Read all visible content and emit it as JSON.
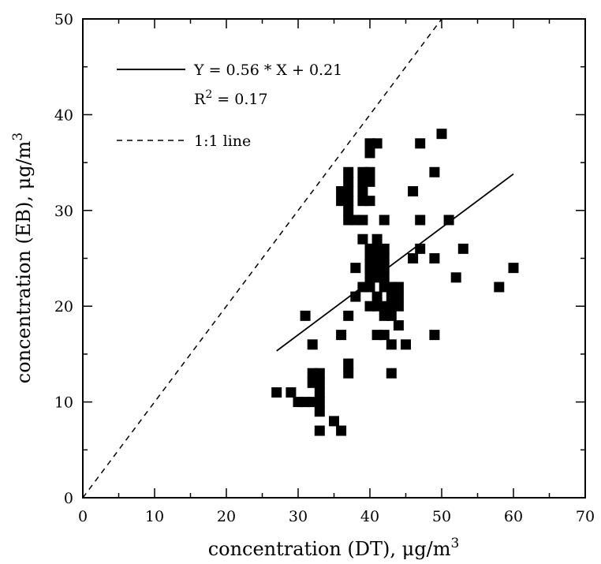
{
  "chart_data": {
    "type": "scatter",
    "xlabel": "concentration (DT), μg/m",
    "xlabel_sup": "3",
    "ylabel": "concentration (EB), μg/m",
    "ylabel_sup": "3",
    "xlim": [
      0,
      70
    ],
    "ylim": [
      0,
      50
    ],
    "x_ticks": [
      0,
      10,
      20,
      30,
      40,
      50,
      60,
      70
    ],
    "y_ticks": [
      0,
      10,
      20,
      30,
      40,
      50
    ],
    "grid": false,
    "legend_position": "top-left",
    "legend": {
      "regression_label": "Y = 0.56 * X + 0.21",
      "r2_prefix": "R",
      "r2_sup": "2",
      "r2_suffix": " = 0.17",
      "identity_label": "1:1 line"
    },
    "series": [
      {
        "marker": "square",
        "points": [
          [
            27,
            11
          ],
          [
            29,
            11
          ],
          [
            30,
            10
          ],
          [
            31,
            10
          ],
          [
            31,
            19
          ],
          [
            32,
            10
          ],
          [
            32,
            13
          ],
          [
            32,
            12
          ],
          [
            32,
            16
          ],
          [
            33,
            13
          ],
          [
            33,
            12
          ],
          [
            33,
            11
          ],
          [
            33,
            10
          ],
          [
            33,
            9
          ],
          [
            33,
            7
          ],
          [
            35,
            8
          ],
          [
            36,
            7
          ],
          [
            36,
            17
          ],
          [
            36,
            31
          ],
          [
            36,
            32
          ],
          [
            37,
            34
          ],
          [
            37,
            33
          ],
          [
            37,
            32
          ],
          [
            37,
            31
          ],
          [
            37,
            30
          ],
          [
            37,
            29
          ],
          [
            37,
            19
          ],
          [
            37,
            14
          ],
          [
            37,
            13
          ],
          [
            38,
            29
          ],
          [
            38,
            24
          ],
          [
            38,
            21
          ],
          [
            39,
            34
          ],
          [
            39,
            33
          ],
          [
            39,
            32
          ],
          [
            39,
            31
          ],
          [
            39,
            29
          ],
          [
            39,
            27
          ],
          [
            39,
            22
          ],
          [
            40,
            37
          ],
          [
            40,
            36
          ],
          [
            40,
            34
          ],
          [
            40,
            33
          ],
          [
            40,
            31
          ],
          [
            40,
            26
          ],
          [
            40,
            25
          ],
          [
            40,
            24
          ],
          [
            40,
            23
          ],
          [
            40,
            22
          ],
          [
            40,
            20
          ],
          [
            41,
            37
          ],
          [
            41,
            27
          ],
          [
            41,
            26
          ],
          [
            41,
            25
          ],
          [
            41,
            24
          ],
          [
            41,
            23
          ],
          [
            41,
            21
          ],
          [
            41,
            20
          ],
          [
            41,
            17
          ],
          [
            42,
            29
          ],
          [
            42,
            26
          ],
          [
            42,
            25
          ],
          [
            42,
            24
          ],
          [
            42,
            23
          ],
          [
            42,
            22
          ],
          [
            42,
            20
          ],
          [
            42,
            19
          ],
          [
            42,
            17
          ],
          [
            43,
            22
          ],
          [
            43,
            21
          ],
          [
            43,
            20
          ],
          [
            43,
            19
          ],
          [
            43,
            16
          ],
          [
            43,
            13
          ],
          [
            44,
            22
          ],
          [
            44,
            21
          ],
          [
            44,
            20
          ],
          [
            44,
            18
          ],
          [
            45,
            16
          ],
          [
            46,
            32
          ],
          [
            46,
            25
          ],
          [
            47,
            37
          ],
          [
            47,
            29
          ],
          [
            47,
            26
          ],
          [
            49,
            34
          ],
          [
            49,
            25
          ],
          [
            49,
            17
          ],
          [
            50,
            38
          ],
          [
            51,
            29
          ],
          [
            52,
            23
          ],
          [
            53,
            26
          ],
          [
            58,
            22
          ],
          [
            60,
            24
          ]
        ]
      }
    ],
    "regression": {
      "slope": 0.56,
      "intercept": 0.21,
      "x_range": [
        27,
        60
      ],
      "style": "solid"
    },
    "identity_line": {
      "style": "dashed"
    }
  }
}
